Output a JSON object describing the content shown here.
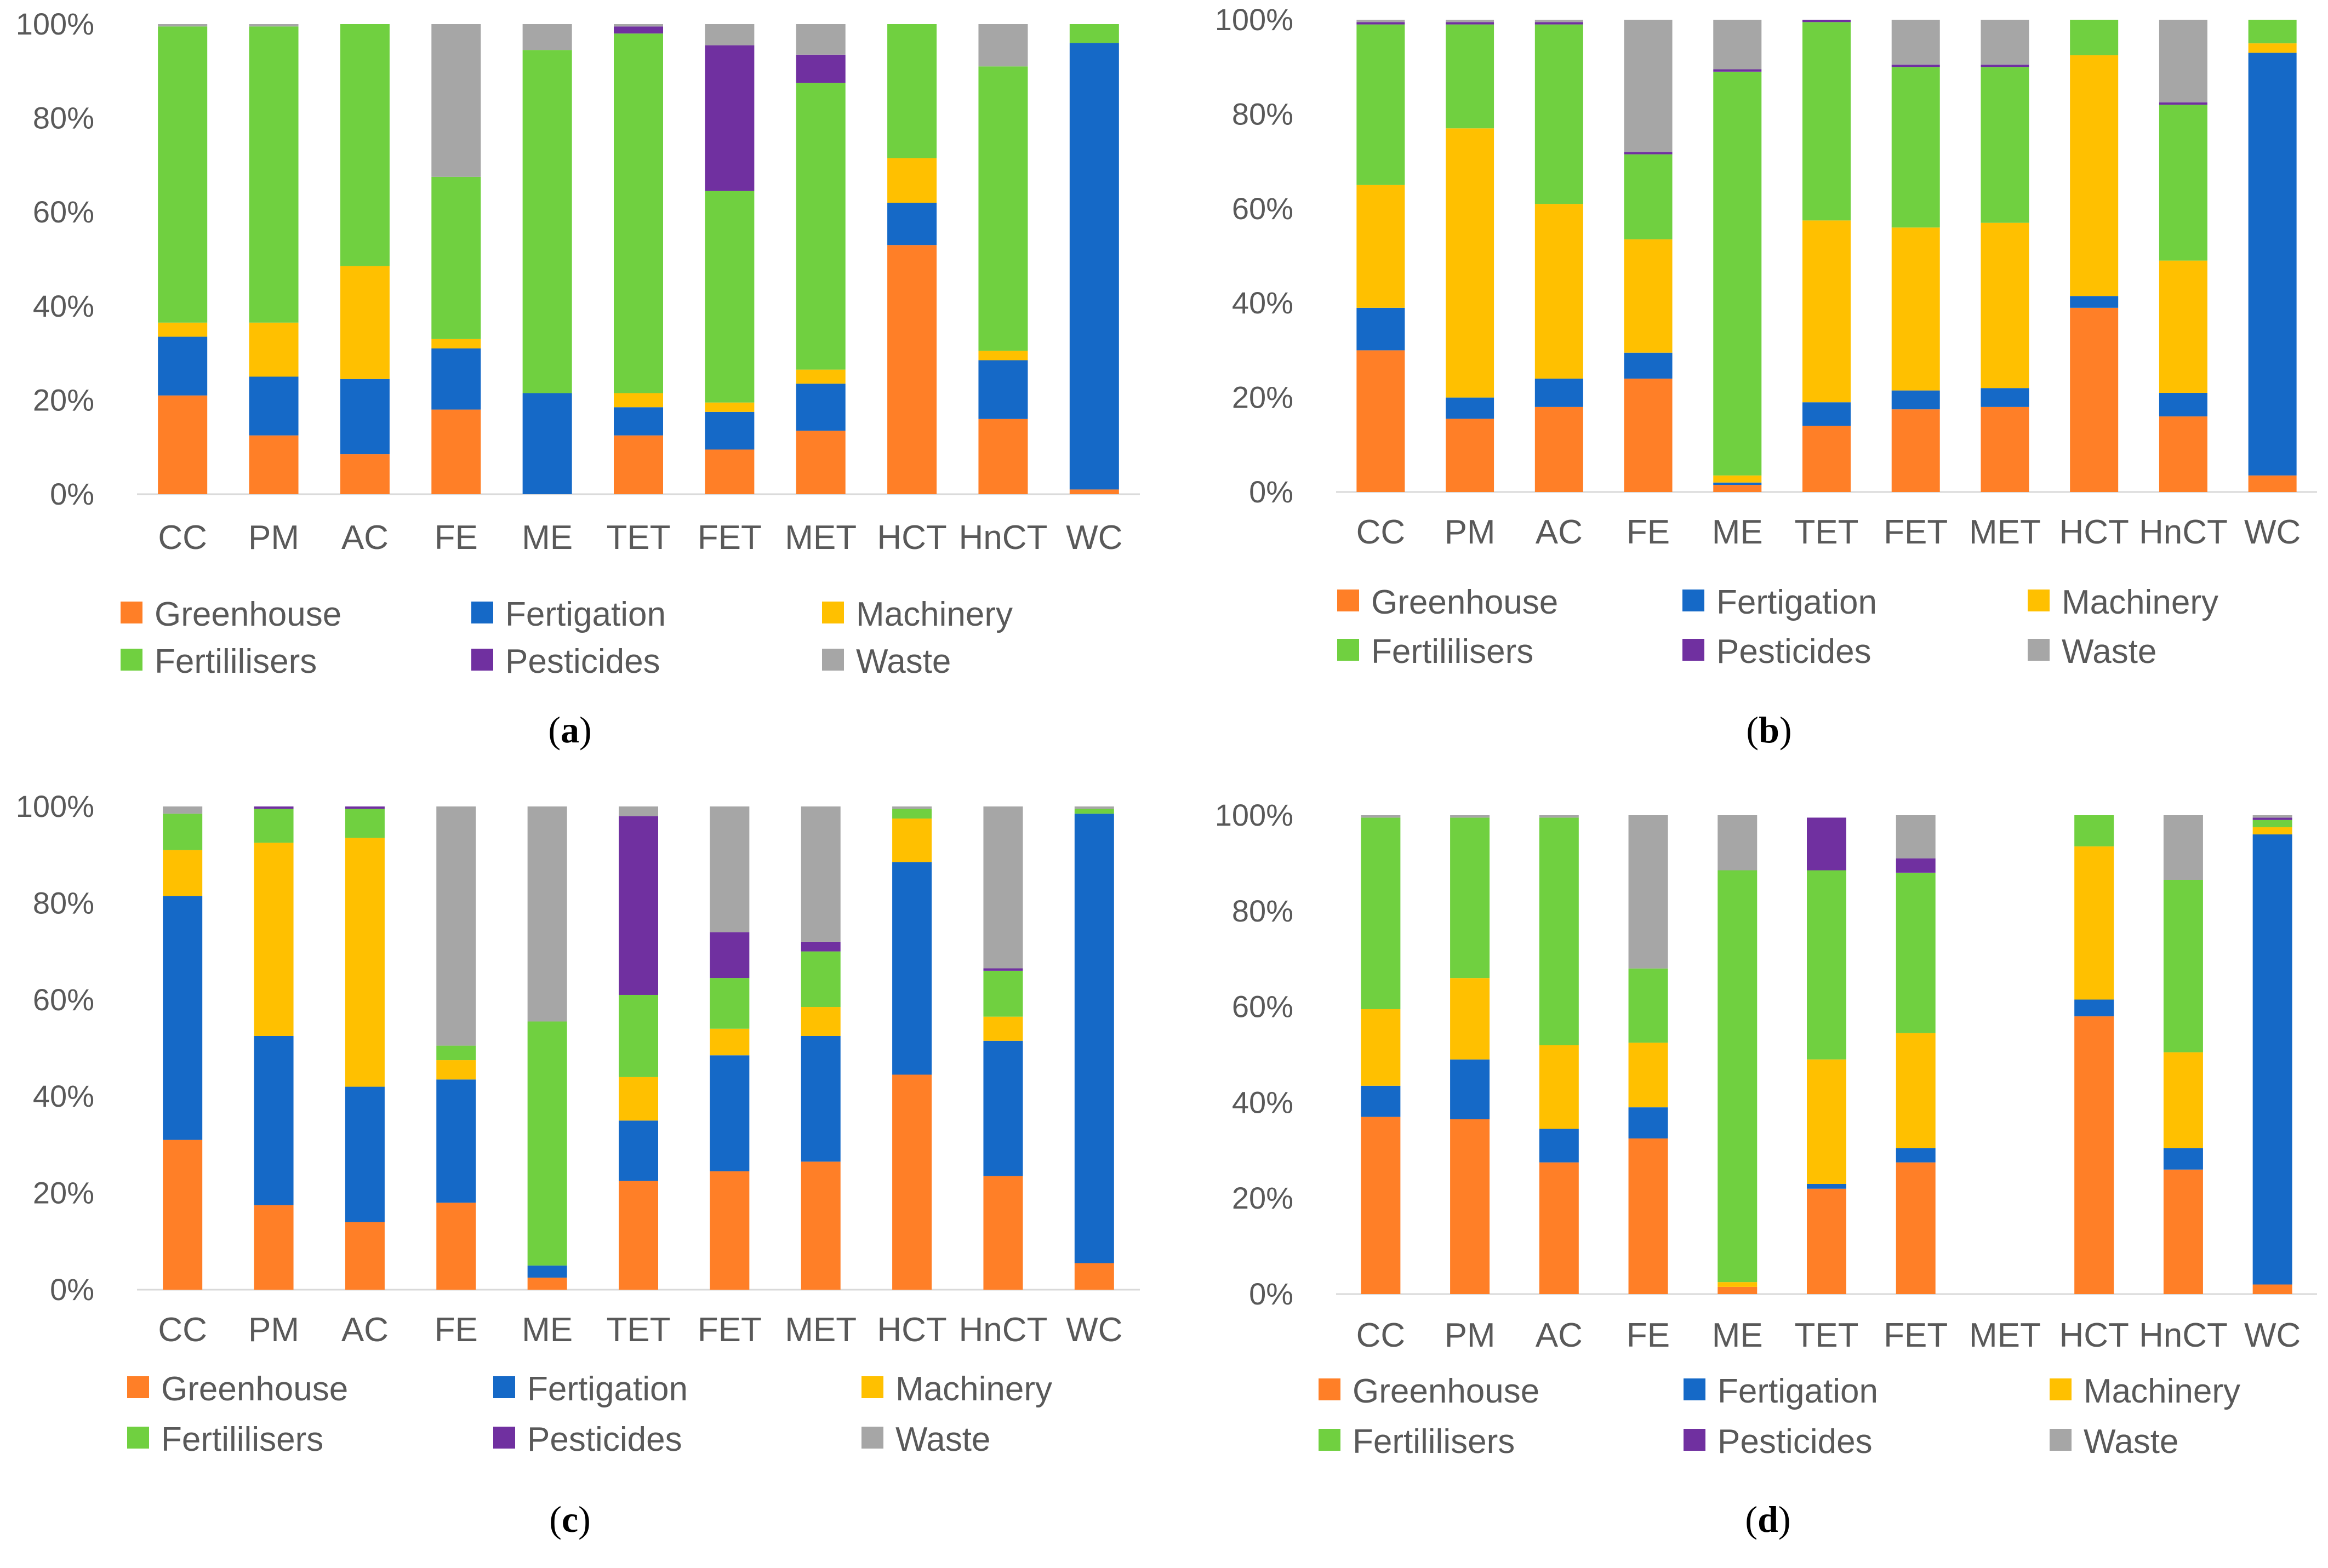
{
  "colors": {
    "Greenhouse": "#ff7f27",
    "Fertigation": "#1569c7",
    "Machinery": "#ffc000",
    "Fertililisers": "#70d040",
    "Pesticides": "#7030a0",
    "Waste": "#a6a6a6"
  },
  "chart_data": [
    {
      "type": "bar",
      "stacked": true,
      "panel": "a",
      "caption": {
        "open": "(",
        "letter": "a",
        "close": ")"
      },
      "categories": [
        "CC",
        "PM",
        "AC",
        "FE",
        "ME",
        "TET",
        "FET",
        "MET",
        "HCT",
        "HnCT",
        "WC"
      ],
      "yticks": [
        "0%",
        "20%",
        "40%",
        "60%",
        "80%",
        "100%"
      ],
      "ylim": [
        0,
        100
      ],
      "legend": [
        "Greenhouse",
        "Fertigation",
        "Machinery",
        "Fertililisers",
        "Pesticides",
        "Waste"
      ],
      "series": [
        {
          "name": "Greenhouse",
          "values": [
            21,
            12.5,
            8.5,
            18,
            0,
            12.5,
            9.5,
            13.5,
            53,
            16,
            1
          ]
        },
        {
          "name": "Fertigation",
          "values": [
            12.5,
            12.5,
            16,
            13,
            21.5,
            6,
            8,
            10,
            9,
            12.5,
            95
          ]
        },
        {
          "name": "Machinery",
          "values": [
            3,
            11.5,
            24,
            2,
            0,
            3,
            2,
            3,
            9.5,
            2,
            0
          ]
        },
        {
          "name": "Fertililisers",
          "values": [
            63,
            63,
            51.5,
            34.5,
            73,
            76.5,
            45,
            61,
            28.5,
            60.5,
            4
          ]
        },
        {
          "name": "Pesticides",
          "values": [
            0,
            0,
            0,
            0,
            0,
            1.5,
            31,
            6,
            0,
            0,
            0
          ]
        },
        {
          "name": "Waste",
          "values": [
            0.5,
            0.5,
            0,
            32.5,
            5.5,
            0.5,
            4.5,
            6.5,
            0,
            9,
            0
          ]
        }
      ]
    },
    {
      "type": "bar",
      "stacked": true,
      "panel": "b",
      "caption": {
        "open": "(",
        "letter": "b",
        "close": ")"
      },
      "categories": [
        "CC",
        "PM",
        "AC",
        "FE",
        "ME",
        "TET",
        "FET",
        "MET",
        "HCT",
        "HnCT",
        "WC"
      ],
      "yticks": [
        "0%",
        "20%",
        "40%",
        "60%",
        "80%",
        "100%"
      ],
      "ylim": [
        0,
        100
      ],
      "legend": [
        "Greenhouse",
        "Fertigation",
        "Machinery",
        "Fertililisers",
        "Pesticides",
        "Waste"
      ],
      "series": [
        {
          "name": "Greenhouse",
          "values": [
            30,
            15.5,
            18,
            24,
            1.5,
            14,
            17.5,
            18,
            39,
            16,
            3.5
          ]
        },
        {
          "name": "Fertigation",
          "values": [
            9,
            4.5,
            6,
            5.5,
            0.5,
            5,
            4,
            4,
            2.5,
            5,
            89.5
          ]
        },
        {
          "name": "Machinery",
          "values": [
            26,
            57,
            37,
            24,
            1.5,
            38.5,
            34.5,
            35,
            51,
            28,
            2
          ]
        },
        {
          "name": "Fertililisers",
          "values": [
            34,
            22,
            38,
            18,
            85.5,
            42,
            34,
            33,
            7.5,
            33,
            5
          ]
        },
        {
          "name": "Pesticides",
          "values": [
            0.5,
            0.5,
            0.5,
            0.5,
            0.5,
            0.5,
            0.5,
            0.5,
            0,
            0.5,
            0
          ]
        },
        {
          "name": "Waste",
          "values": [
            0.5,
            0.5,
            0.5,
            28,
            10.5,
            0,
            9.5,
            9.5,
            0,
            17.5,
            0
          ]
        }
      ]
    },
    {
      "type": "bar",
      "stacked": true,
      "panel": "c",
      "caption": {
        "open": "(",
        "letter": "c",
        "close": ")"
      },
      "categories": [
        "CC",
        "PM",
        "AC",
        "FE",
        "ME",
        "TET",
        "FET",
        "MET",
        "HCT",
        "HnCT",
        "WC"
      ],
      "yticks": [
        "0%",
        "20%",
        "40%",
        "60%",
        "80%",
        "100%"
      ],
      "ylim": [
        0,
        100
      ],
      "legend": [
        "Greenhouse",
        "Fertigation",
        "Machinery",
        "Fertililisers",
        "Pesticides",
        "Waste"
      ],
      "series": [
        {
          "name": "Greenhouse",
          "values": [
            31,
            17.5,
            14,
            18,
            2.5,
            22.5,
            24.5,
            26.5,
            44.5,
            23.5,
            5.5
          ]
        },
        {
          "name": "Fertigation",
          "values": [
            50.5,
            35,
            28,
            25.5,
            2.5,
            12.5,
            24,
            26,
            44,
            28,
            93
          ]
        },
        {
          "name": "Machinery",
          "values": [
            9.5,
            40,
            51.5,
            4,
            0,
            9,
            5.5,
            6,
            9,
            5,
            0
          ]
        },
        {
          "name": "Fertililisers",
          "values": [
            7.5,
            7,
            6,
            3,
            50.5,
            17,
            10.5,
            11.5,
            2,
            9.5,
            1
          ]
        },
        {
          "name": "Pesticides",
          "values": [
            0,
            0.5,
            0.5,
            0,
            0,
            37,
            9.5,
            2,
            0,
            0.5,
            0
          ]
        },
        {
          "name": "Waste",
          "values": [
            1.5,
            0,
            0,
            49.5,
            44.5,
            2,
            26,
            28,
            0.5,
            33.5,
            0.5
          ]
        }
      ]
    },
    {
      "type": "bar",
      "stacked": true,
      "panel": "d",
      "caption": {
        "open": "(",
        "letter": "d",
        "close": ")"
      },
      "categories": [
        "CC",
        "PM",
        "AC",
        "FE",
        "ME",
        "TET",
        "FET",
        "MET",
        "HCT",
        "HnCT",
        "WC"
      ],
      "yticks": [
        "0%",
        "20%",
        "40%",
        "60%",
        "80%",
        "100%"
      ],
      "ylim": [
        0,
        100
      ],
      "legend": [
        "Greenhouse",
        "Fertigation",
        "Machinery",
        "Fertililisers",
        "Pesticides",
        "Waste"
      ],
      "series": [
        {
          "name": "Greenhouse",
          "values": [
            37,
            36.5,
            27.5,
            32.5,
            1.5,
            22,
            27.5,
            0,
            58,
            26,
            2
          ]
        },
        {
          "name": "Fertigation",
          "values": [
            6.5,
            12.5,
            7,
            6.5,
            0,
            1,
            3,
            0,
            3.5,
            4.5,
            94
          ]
        },
        {
          "name": "Machinery",
          "values": [
            16,
            17,
            17.5,
            13.5,
            1,
            26,
            24,
            0,
            32,
            20,
            1.5
          ]
        },
        {
          "name": "Fertililisers",
          "values": [
            40,
            33.5,
            47.5,
            15.5,
            86,
            39.5,
            33.5,
            0,
            6.5,
            36,
            1.5
          ]
        },
        {
          "name": "Pesticides",
          "values": [
            0,
            0,
            0,
            0,
            0,
            11,
            3,
            0,
            0,
            0,
            0.5
          ]
        },
        {
          "name": "Waste",
          "values": [
            0.5,
            0.5,
            0.5,
            32,
            11.5,
            0,
            9,
            0,
            0,
            13.5,
            0.5
          ]
        }
      ]
    }
  ]
}
